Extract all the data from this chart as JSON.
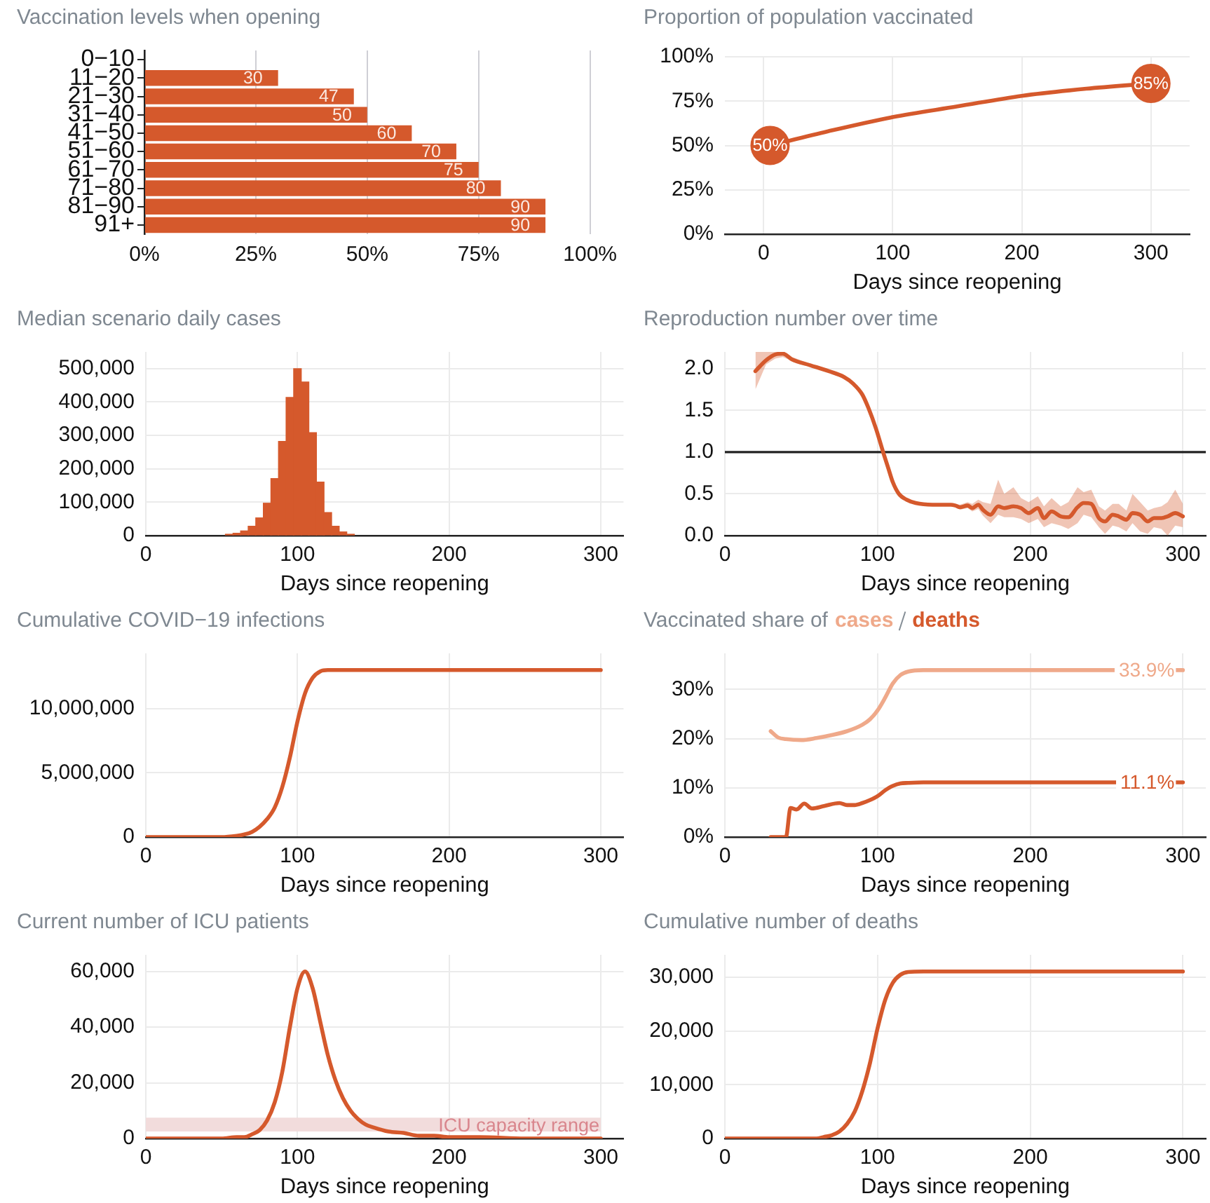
{
  "chart_data": [
    {
      "type": "bar",
      "orientation": "horizontal",
      "title": "Vaccination levels when opening",
      "categories": [
        "0−10",
        "11−20",
        "21−30",
        "31−40",
        "41−50",
        "51−60",
        "61−70",
        "71−80",
        "81−90",
        "91+"
      ],
      "values": [
        0,
        30,
        47,
        50,
        60,
        70,
        75,
        80,
        90,
        90
      ],
      "value_labels": [
        null,
        "30",
        "47",
        "50",
        "60",
        "70",
        "75",
        "80",
        "90",
        "90"
      ],
      "color": "#d5592c",
      "xlim": [
        0,
        100
      ],
      "xticks": [
        {
          "value": 0,
          "label": "0%"
        },
        {
          "value": 25,
          "label": "25%"
        },
        {
          "value": 50,
          "label": "50%"
        },
        {
          "value": 75,
          "label": "75%"
        },
        {
          "value": 100,
          "label": "100%"
        }
      ],
      "grid": "x"
    },
    {
      "type": "line",
      "title": "Proportion of population vaccinated",
      "xlabel": "Days since reopening",
      "series": [
        {
          "type": "line",
          "color": "#d5592c",
          "x": [
            5,
            50,
            100,
            150,
            200,
            250,
            300
          ],
          "values": [
            50,
            58,
            66,
            72,
            78,
            82,
            85
          ]
        },
        {
          "type": "scatter",
          "color": "#d5592c",
          "marker": "circle",
          "x": [
            5,
            300
          ],
          "values": [
            50,
            85
          ],
          "value_labels": [
            "50%",
            "85%"
          ]
        }
      ],
      "xlim": [
        -30,
        330
      ],
      "xticks": [
        0,
        100,
        200,
        300
      ],
      "ylim": [
        0,
        100
      ],
      "yticks": [
        {
          "value": 0,
          "label": "0%"
        },
        {
          "value": 25,
          "label": "25%"
        },
        {
          "value": 50,
          "label": "50%"
        },
        {
          "value": 75,
          "label": "75%"
        },
        {
          "value": 100,
          "label": "100%"
        }
      ],
      "grid": true
    },
    {
      "type": "histogram",
      "title": "Median scenario daily cases",
      "xlabel": "Days since reopening",
      "bins": [
        52.5,
        57.5,
        62.5,
        67.5,
        72.5,
        77.5,
        82.5,
        87.5,
        92.5,
        97.5,
        102.5,
        107.5,
        112.5,
        117.5,
        122.5,
        127.5,
        132.5,
        137.5
      ],
      "values": [
        4000,
        7000,
        14000,
        28000,
        53000,
        97000,
        171000,
        282000,
        414000,
        500000,
        460000,
        308000,
        160000,
        69000,
        28000,
        11000,
        4000
      ],
      "color": "#d5592c",
      "xlim": [
        0,
        315
      ],
      "xticks": [
        0,
        100,
        200,
        300
      ],
      "ylim": [
        0,
        550000
      ],
      "yticks": [
        0,
        {
          "value": 100000,
          "label": "100,000"
        },
        {
          "value": 200000,
          "label": "200,000"
        },
        {
          "value": 300000,
          "label": "300,000"
        },
        {
          "value": 400000,
          "label": "400,000"
        },
        {
          "value": 500000,
          "label": "500,000"
        }
      ],
      "grid": true
    },
    {
      "type": "line",
      "title": "Reproduction number over time",
      "xlabel": "Days since reopening",
      "series": [
        {
          "color": "#d5592c",
          "x": [
            20,
            27,
            33,
            38,
            44,
            56,
            68,
            78,
            84,
            90,
            94,
            99,
            104,
            107,
            110,
            114,
            119,
            125,
            136,
            148,
            151,
            154,
            159,
            162,
            166,
            169,
            174,
            179,
            183,
            189,
            194,
            199,
            205,
            209,
            214,
            220,
            225,
            231,
            235,
            240,
            245,
            249,
            254,
            258,
            263,
            267,
            272,
            277,
            281,
            286,
            290,
            295,
            300
          ],
          "values": [
            1.97,
            2.1,
            2.17,
            2.18,
            2.11,
            2.04,
            1.97,
            1.9,
            1.82,
            1.69,
            1.53,
            1.28,
            0.98,
            0.81,
            0.64,
            0.5,
            0.43,
            0.39,
            0.37,
            0.37,
            0.36,
            0.34,
            0.36,
            0.33,
            0.37,
            0.31,
            0.25,
            0.35,
            0.33,
            0.35,
            0.33,
            0.27,
            0.33,
            0.21,
            0.29,
            0.23,
            0.22,
            0.34,
            0.39,
            0.38,
            0.21,
            0.17,
            0.25,
            0.23,
            0.19,
            0.27,
            0.25,
            0.17,
            0.21,
            0.21,
            0.23,
            0.27,
            0.23
          ],
          "lower": [
            1.75,
            2.05,
            2.12,
            2.14,
            2.09,
            2.02,
            1.96,
            1.89,
            1.81,
            1.68,
            1.52,
            1.27,
            0.97,
            0.8,
            0.63,
            0.49,
            0.42,
            0.38,
            0.36,
            0.36,
            0.34,
            0.31,
            0.33,
            0.29,
            0.32,
            0.24,
            0.15,
            0.25,
            0.22,
            0.22,
            0.2,
            0.15,
            0.2,
            0.1,
            0.15,
            0.12,
            0.08,
            0.15,
            0.25,
            0.22,
            0.1,
            0.02,
            0.12,
            0.1,
            0.05,
            0.15,
            0.05,
            0.02,
            0.1,
            0.08,
            0.0,
            0.12,
            0.1
          ],
          "upper": [
            2.2,
            2.2,
            2.2,
            2.2,
            2.14,
            2.06,
            1.98,
            1.91,
            1.83,
            1.7,
            1.54,
            1.29,
            1.0,
            0.82,
            0.65,
            0.51,
            0.44,
            0.4,
            0.38,
            0.38,
            0.38,
            0.37,
            0.4,
            0.38,
            0.43,
            0.4,
            0.38,
            0.67,
            0.5,
            0.58,
            0.45,
            0.4,
            0.47,
            0.35,
            0.45,
            0.35,
            0.4,
            0.58,
            0.52,
            0.55,
            0.35,
            0.3,
            0.38,
            0.38,
            0.3,
            0.5,
            0.4,
            0.3,
            0.33,
            0.35,
            0.4,
            0.55,
            0.38
          ]
        }
      ],
      "ref_lines": [
        {
          "axis": "y",
          "value": 1,
          "color": "#222222"
        }
      ],
      "xlim": [
        0,
        315
      ],
      "xticks": [
        0,
        100,
        200,
        300
      ],
      "ylim": [
        0,
        2.2
      ],
      "yticks": [
        {
          "value": 0,
          "label": "0.0"
        },
        0.5,
        {
          "value": 1,
          "label": "1.0"
        },
        1.5,
        {
          "value": 2,
          "label": "2.0"
        }
      ],
      "grid": true
    },
    {
      "type": "line",
      "title": "Cumulative COVID−19 infections",
      "xlabel": "Days since reopening",
      "series": [
        {
          "color": "#d5592c",
          "x": [
            0,
            50,
            60,
            65,
            70,
            75,
            80,
            85,
            90,
            95,
            100,
            105,
            110,
            115,
            120,
            130,
            300
          ],
          "values": [
            0,
            0,
            100000,
            200000,
            400000,
            800000,
            1400000,
            2300000,
            3900000,
            6200000,
            9000000,
            11200000,
            12400000,
            12900000,
            13000000,
            13000000,
            13000000
          ]
        }
      ],
      "xlim": [
        0,
        315
      ],
      "xticks": [
        0,
        100,
        200,
        300
      ],
      "ylim": [
        0,
        14300000
      ],
      "yticks": [
        0,
        {
          "value": 5000000,
          "label": "5,000,000"
        },
        {
          "value": 10000000,
          "label": "10,000,000"
        }
      ],
      "grid": true
    },
    {
      "type": "line",
      "title": "Vaccinated share of",
      "legend": "top",
      "xlabel": "Days since reopening",
      "series": [
        {
          "name": "cases",
          "color": "#efa98a",
          "x": [
            30,
            35,
            40,
            50,
            60,
            70,
            80,
            90,
            95,
            100,
            105,
            110,
            115,
            120,
            130,
            300
          ],
          "values": [
            21.5,
            20.2,
            19.9,
            19.7,
            20.1,
            20.7,
            21.5,
            22.8,
            23.9,
            25.7,
            28.3,
            31.2,
            32.9,
            33.6,
            33.9,
            33.9
          ],
          "value_labels": [
            null,
            null,
            null,
            null,
            null,
            null,
            null,
            null,
            null,
            null,
            null,
            null,
            null,
            null,
            null,
            "33.9%"
          ]
        },
        {
          "name": "deaths",
          "color": "#d5592c",
          "x": [
            30,
            40,
            43,
            47,
            52,
            57,
            65,
            75,
            80,
            85,
            90,
            95,
            100,
            105,
            110,
            115,
            120,
            130,
            300
          ],
          "values": [
            0,
            0,
            5.9,
            5.6,
            6.8,
            5.8,
            6.3,
            6.9,
            6.5,
            6.5,
            6.9,
            7.5,
            8.3,
            9.5,
            10.4,
            10.9,
            11.0,
            11.1,
            11.1
          ],
          "value_labels": [
            null,
            null,
            null,
            null,
            null,
            null,
            null,
            null,
            null,
            null,
            null,
            null,
            null,
            null,
            null,
            null,
            null,
            null,
            "11.1%"
          ]
        }
      ],
      "xlim": [
        0,
        315
      ],
      "xticks": [
        0,
        100,
        200,
        300
      ],
      "ylim": [
        0,
        37.3
      ],
      "yticks": [
        {
          "value": 0,
          "label": "0%"
        },
        {
          "value": 10,
          "label": "10%"
        },
        {
          "value": 20,
          "label": "20%"
        },
        {
          "value": 30,
          "label": "30%"
        }
      ],
      "grid": true
    },
    {
      "type": "line",
      "title": "Current number of ICU patients",
      "xlabel": "Days since reopening",
      "series": [
        {
          "color": "#d5592c",
          "x": [
            0,
            50,
            60,
            65,
            70,
            75,
            80,
            85,
            90,
            95,
            100,
            105,
            110,
            115,
            120,
            125,
            130,
            135,
            140,
            145,
            150,
            160,
            170,
            180,
            190,
            200,
            220,
            250,
            300
          ],
          "values": [
            0,
            0,
            500,
            500,
            1500,
            3000,
            6500,
            13000,
            24000,
            40000,
            54000,
            60000,
            54000,
            42000,
            30000,
            21000,
            14500,
            10000,
            7000,
            5000,
            4000,
            2500,
            2000,
            1000,
            1000,
            500,
            500,
            0,
            0
          ]
        }
      ],
      "bands": [
        {
          "axis": "y",
          "from": 2500,
          "to": 7500,
          "label": "ICU capacity range",
          "color": "#f2dcdc"
        }
      ],
      "xlim": [
        0,
        315
      ],
      "xticks": [
        0,
        100,
        200,
        300
      ],
      "ylim": [
        0,
        66000
      ],
      "yticks": [
        0,
        {
          "value": 20000,
          "label": "20,000"
        },
        {
          "value": 40000,
          "label": "40,000"
        },
        {
          "value": 60000,
          "label": "60,000"
        }
      ],
      "grid": true
    },
    {
      "type": "line",
      "title": "Cumulative number of deaths",
      "xlabel": "Days since reopening",
      "series": [
        {
          "color": "#d5592c",
          "x": [
            0,
            50,
            60,
            65,
            70,
            75,
            80,
            85,
            90,
            95,
            100,
            105,
            110,
            115,
            120,
            130,
            300
          ],
          "values": [
            0,
            0,
            0,
            300,
            600,
            1300,
            2700,
            5000,
            8800,
            14000,
            20500,
            25800,
            29000,
            30500,
            31000,
            31100,
            31100
          ]
        }
      ],
      "xlim": [
        0,
        315
      ],
      "xticks": [
        0,
        100,
        200,
        300
      ],
      "ylim": [
        0,
        34200
      ],
      "yticks": [
        0,
        {
          "value": 10000,
          "label": "10,000"
        },
        {
          "value": 20000,
          "label": "20,000"
        },
        {
          "value": 30000,
          "label": "30,000"
        }
      ],
      "grid": true
    }
  ]
}
